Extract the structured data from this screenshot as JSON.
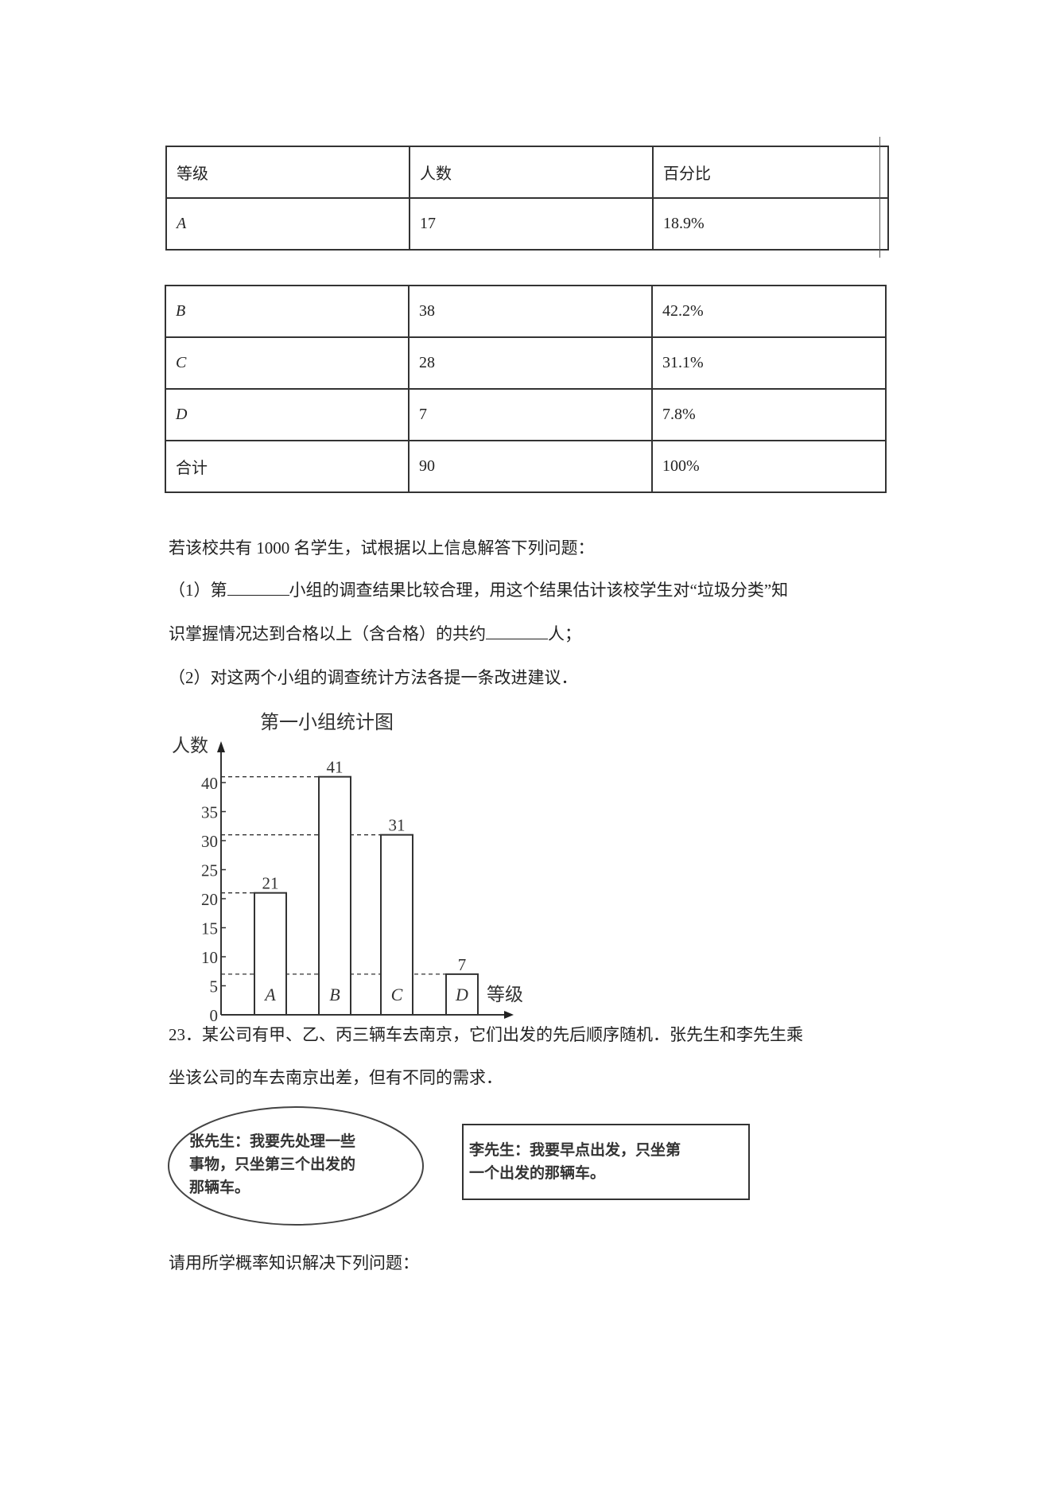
{
  "table_top": {
    "headers": [
      "等级",
      "人数",
      "百分比"
    ],
    "rows": [
      [
        "A",
        "17",
        "18.9%"
      ]
    ]
  },
  "table_bottom": {
    "rows": [
      [
        "B",
        "38",
        "42.2%"
      ],
      [
        "C",
        "28",
        "31.1%"
      ],
      [
        "D",
        "7",
        "7.8%"
      ],
      [
        "合计",
        "90",
        "100%"
      ]
    ]
  },
  "text": {
    "intro": "若该校共有 1000 名学生，试根据以上信息解答下列问题：",
    "q1_a": "（1）第",
    "q1_b": "小组的调查结果比较合理，用这个结果估计该校学生对“垃圾分类”知",
    "q1_c": "识掌握情况达到合格以上（含合格）的共约",
    "q1_d": "人；",
    "q2": "（2）对这两个小组的调查统计方法各提一条改进建议．",
    "q23_line1": "23．某公司有甲、乙、丙三辆车去南京，它们出发的先后顺序随机．张先生和李先生乘",
    "q23_line2": "坐该公司的车去南京出差，但有不同的需求．",
    "zhang": [
      "张先生：我要先处理一些",
      "事物，只坐第三个出发的",
      "那辆车。"
    ],
    "li": [
      "李先生：我要早点出发，只坐第",
      "一个出发的那辆车。"
    ],
    "final": "请用所学概率知识解决下列问题："
  },
  "chart_data": {
    "type": "bar",
    "title": "第一小组统计图",
    "ylabel": "人数",
    "xlabel": "等级",
    "categories": [
      "A",
      "B",
      "C",
      "D"
    ],
    "values": [
      21,
      41,
      31,
      7
    ],
    "yticks": [
      0,
      5,
      10,
      15,
      20,
      25,
      30,
      35,
      40
    ],
    "ylim": [
      0,
      45
    ],
    "dashed_reference_lines": true,
    "grid": false
  }
}
